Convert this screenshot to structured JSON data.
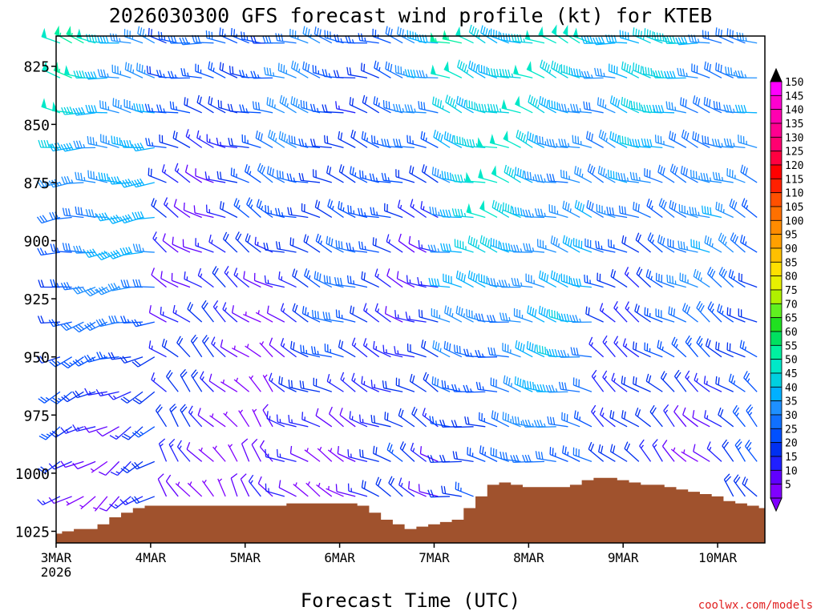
{
  "chart_data": {
    "type": "wind-profile",
    "title": "2026030300 GFS forecast wind profile (kt) for KTEB",
    "xlabel": "Forecast Time (UTC)",
    "ylabel": "",
    "credit": "coolwx.com/models",
    "x_range_hours": [
      0,
      180
    ],
    "y_range_hPa": [
      812,
      1030
    ],
    "y_ticks": [
      825,
      850,
      875,
      900,
      925,
      950,
      975,
      1000,
      1025
    ],
    "x_ticks": [
      {
        "hour": 0,
        "label": "3MAR",
        "sublabel": "2026"
      },
      {
        "hour": 24,
        "label": "4MAR"
      },
      {
        "hour": 48,
        "label": "5MAR"
      },
      {
        "hour": 72,
        "label": "6MAR"
      },
      {
        "hour": 96,
        "label": "7MAR"
      },
      {
        "hour": 120,
        "label": "8MAR"
      },
      {
        "hour": 144,
        "label": "9MAR"
      },
      {
        "hour": 168,
        "label": "10MAR"
      }
    ],
    "levels_hPa": [
      815,
      830,
      845,
      860,
      875,
      890,
      905,
      920,
      935,
      950,
      965,
      980,
      995,
      1010,
      1025
    ],
    "barb_time_step_hours": 3,
    "speed_scale": {
      "levels": [
        5,
        10,
        15,
        20,
        25,
        30,
        35,
        40,
        45,
        50,
        55,
        60,
        65,
        70,
        75,
        80,
        85,
        90,
        95,
        100,
        105,
        110,
        115,
        120,
        125,
        130,
        135,
        140,
        145,
        150
      ],
      "colors": [
        "#8000ff",
        "#6000ff",
        "#2020ff",
        "#0030f0",
        "#0050ff",
        "#1070ff",
        "#1e90ff",
        "#00b0ff",
        "#00d0e0",
        "#00e8c8",
        "#00f0a0",
        "#00e060",
        "#20e020",
        "#60f020",
        "#b0f000",
        "#e8f000",
        "#ffe000",
        "#ffc000",
        "#ffa000",
        "#ff8c00",
        "#ff7000",
        "#ff5000",
        "#ff2000",
        "#ff0000",
        "#ff0040",
        "#ff0070",
        "#ff0090",
        "#ff00b0",
        "#ff00d0",
        "#ff00ff"
      ]
    },
    "surface_pressure": {
      "hours": [
        0,
        3,
        6,
        9,
        12,
        15,
        18,
        21,
        24,
        27,
        30,
        33,
        36,
        39,
        42,
        45,
        48,
        51,
        54,
        57,
        60,
        63,
        66,
        69,
        72,
        75,
        78,
        81,
        84,
        87,
        90,
        93,
        96,
        99,
        102,
        105,
        108,
        111,
        114,
        117,
        120,
        123,
        126,
        129,
        132,
        135,
        138,
        141,
        144,
        147,
        150,
        153,
        156,
        159,
        162,
        165,
        168,
        171,
        174,
        177,
        180
      ],
      "values": [
        1026,
        1025,
        1024,
        1024,
        1022,
        1019,
        1017,
        1015,
        1014,
        1014,
        1014,
        1014,
        1014,
        1014,
        1014,
        1014,
        1014,
        1014,
        1014,
        1014,
        1013,
        1013,
        1013,
        1013,
        1013,
        1013,
        1014,
        1017,
        1020,
        1022,
        1024,
        1023,
        1022,
        1021,
        1020,
        1015,
        1010,
        1005,
        1004,
        1005,
        1006,
        1006,
        1006,
        1006,
        1005,
        1003,
        1002,
        1002,
        1003,
        1004,
        1005,
        1005,
        1006,
        1007,
        1008,
        1009,
        1010,
        1012,
        1013,
        1014,
        1015
      ],
      "fill_color": "#a0522d"
    },
    "wind_fields_note": "barb field: speed (kt) and direction (deg from) per time step and level, generated from the visual patterns in the figure",
    "wind_regimes": [
      {
        "start_hour": 0,
        "end_hour": 27,
        "upper_speed": 45,
        "lower_speed": 12,
        "upper_dir": 285,
        "lower_dir": 230
      },
      {
        "start_hour": 27,
        "end_hour": 57,
        "upper_speed": 25,
        "lower_speed": 6,
        "upper_dir": 280,
        "lower_dir": 330
      },
      {
        "start_hour": 57,
        "end_hour": 99,
        "upper_speed": 30,
        "lower_speed": 10,
        "upper_dir": 285,
        "lower_dir": 300
      },
      {
        "start_hour": 99,
        "end_hour": 138,
        "upper_speed": 48,
        "lower_speed": 25,
        "upper_dir": 290,
        "lower_dir": 280
      },
      {
        "start_hour": 138,
        "end_hour": 180,
        "upper_speed": 40,
        "lower_speed": 12,
        "upper_dir": 280,
        "lower_dir": 320
      }
    ]
  }
}
